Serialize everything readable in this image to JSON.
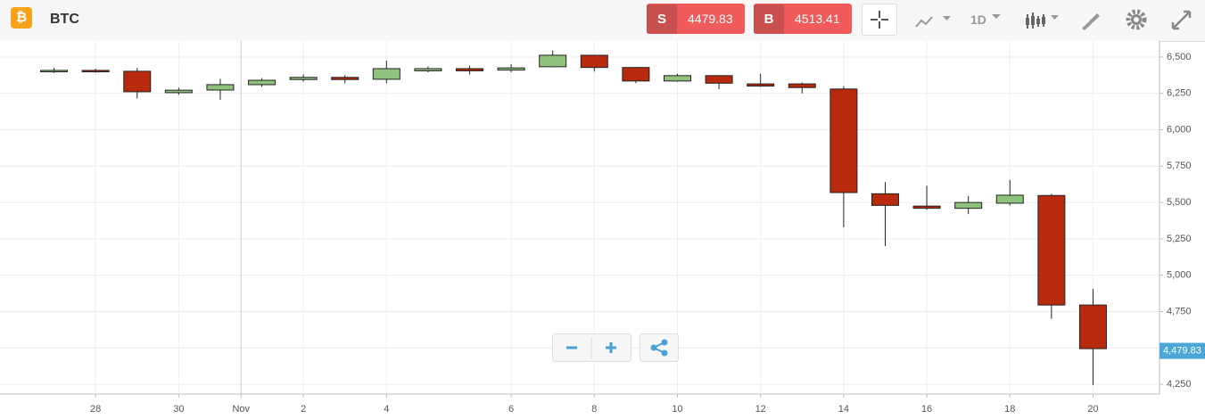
{
  "header": {
    "symbol": "BTC",
    "sell_label": "S",
    "sell_price": "4479.83",
    "buy_label": "B",
    "buy_price": "4513.41",
    "interval": "1D"
  },
  "chart_data": {
    "type": "candlestick",
    "open": [
      6398,
      6408,
      6402,
      6255,
      6273,
      6310,
      6345,
      6360,
      6347,
      6405,
      6420,
      6410,
      6433,
      6512,
      6428,
      6335,
      6372,
      6315,
      6315,
      6280,
      5560,
      5475,
      5460,
      5495,
      5548,
      4795
    ],
    "high": [
      6425,
      6420,
      6425,
      6290,
      6350,
      6355,
      6380,
      6375,
      6475,
      6435,
      6440,
      6450,
      6545,
      6515,
      6430,
      6385,
      6375,
      6385,
      6325,
      6300,
      5640,
      5615,
      5545,
      5655,
      5560,
      4905
    ],
    "low": [
      6390,
      6392,
      6215,
      6240,
      6205,
      6295,
      6330,
      6320,
      6320,
      6395,
      6380,
      6395,
      6430,
      6400,
      6320,
      6330,
      6280,
      6295,
      6250,
      5330,
      5200,
      5450,
      5420,
      5480,
      4700,
      4245
    ],
    "close": [
      6408,
      6398,
      6261,
      6272,
      6310,
      6340,
      6360,
      6345,
      6420,
      6420,
      6405,
      6425,
      6512,
      6428,
      6335,
      6372,
      6320,
      6300,
      6290,
      5568,
      5480,
      5460,
      5500,
      5550,
      4795,
      4495
    ],
    "up_color": "#8fc27c",
    "down_color": "#b82a0e",
    "xlim": [
      -1.3,
      26.6
    ],
    "xticks": [
      {
        "value": 1,
        "label": "28"
      },
      {
        "value": 3,
        "label": "30"
      },
      {
        "value": 4.5,
        "label": "Nov"
      },
      {
        "value": 6,
        "label": "2"
      },
      {
        "value": 8,
        "label": "4"
      },
      {
        "value": 11,
        "label": "6"
      },
      {
        "value": 13,
        "label": "8"
      },
      {
        "value": 15,
        "label": "10"
      },
      {
        "value": 17,
        "label": "12"
      },
      {
        "value": 19,
        "label": "14"
      },
      {
        "value": 21,
        "label": "16"
      },
      {
        "value": 23,
        "label": "18"
      },
      {
        "value": 25,
        "label": "20"
      }
    ],
    "ylim": [
      4183,
      6610
    ],
    "yticks": [
      {
        "value": 4250,
        "label": "4,250"
      },
      {
        "value": 4500,
        "label": "4,500"
      },
      {
        "value": 4750,
        "label": "4,750"
      },
      {
        "value": 5000,
        "label": "5,000"
      },
      {
        "value": 5250,
        "label": "5,250"
      },
      {
        "value": 5500,
        "label": "5,500"
      },
      {
        "value": 5750,
        "label": "5,750"
      },
      {
        "value": 6000,
        "label": "6,000"
      },
      {
        "value": 6250,
        "label": "6,250"
      },
      {
        "value": 6500,
        "label": "6,500"
      }
    ],
    "last_price": {
      "value": 4479.83,
      "label": "4,479.83"
    },
    "grid": true
  }
}
